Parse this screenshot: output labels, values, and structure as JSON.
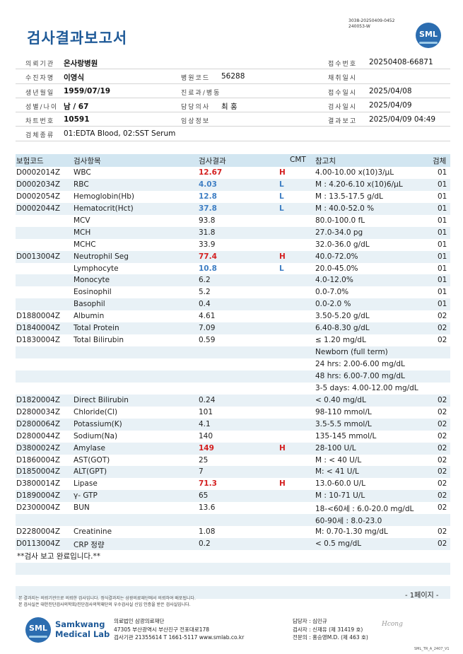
{
  "header": {
    "doc_code_line1": "3038-20250409-0452",
    "doc_code_line2": "240053-W",
    "title": "검사결과보고서",
    "logo_text": "SML"
  },
  "info": {
    "rows": [
      {
        "l1": "의뢰기관",
        "v1": "온사랑병원",
        "l2": "",
        "v2": "",
        "l3": "접수번호",
        "v3": "20250408-66871"
      },
      {
        "l1": "수진자명",
        "v1": "이영식",
        "l2": "병원코드",
        "v2": "56288",
        "l3": "채취일시",
        "v3": ""
      },
      {
        "l1": "생년월일",
        "v1": "1959/07/19",
        "l2": "진료과/병동",
        "v2": "",
        "l3": "접수일시",
        "v3": "2025/04/08"
      },
      {
        "l1": "성별/나이",
        "v1": "남 / 67",
        "l2": "담당의사",
        "v2": "최 홍",
        "l3": "검사일시",
        "v3": "2025/04/09"
      },
      {
        "l1": "차트번호",
        "v1": "10591",
        "l2": "임상정보",
        "v2": "",
        "l3": "결과보고",
        "v3": "2025/04/09 04:49"
      },
      {
        "l1": "검체종류",
        "v1": "01:EDTA Blood, 02:SST Serum",
        "l2": "",
        "v2": "",
        "l3": "",
        "v3": ""
      }
    ]
  },
  "results": {
    "headers": {
      "code": "보험코드",
      "item": "검사항목",
      "result": "검사결과",
      "cmt": "CMT",
      "ref": "참고치",
      "specimen": "검체"
    },
    "rows": [
      {
        "code": "D0002014Z",
        "item": "WBC",
        "result": "12.67",
        "flag": "H",
        "ref": "4.00-10.00 x(10)3/μL",
        "spec": "01"
      },
      {
        "code": "D0002034Z",
        "item": "RBC",
        "result": "4.03",
        "flag": "L",
        "ref": "M : 4.20-6.10 x(10)6/μL",
        "spec": "01"
      },
      {
        "code": "D0002054Z",
        "item": "Hemoglobin(Hb)",
        "result": "12.8",
        "flag": "L",
        "ref": "M : 13.5-17.5 g/dL",
        "spec": "01"
      },
      {
        "code": "D0002044Z",
        "item": "Hematocrit(Hct)",
        "result": "37.8",
        "flag": "L",
        "ref": "M : 40.0-52.0 %",
        "spec": "01"
      },
      {
        "code": "",
        "item": "MCV",
        "result": "93.8",
        "flag": "",
        "ref": "80.0-100.0 fL",
        "spec": "01"
      },
      {
        "code": "",
        "item": "MCH",
        "result": "31.8",
        "flag": "",
        "ref": "27.0-34.0 pg",
        "spec": "01"
      },
      {
        "code": "",
        "item": "MCHC",
        "result": "33.9",
        "flag": "",
        "ref": "32.0-36.0 g/dL",
        "spec": "01"
      },
      {
        "code": "D0013004Z",
        "item": "Neutrophil Seg",
        "result": "77.4",
        "flag": "H",
        "ref": "40.0-72.0%",
        "spec": "01"
      },
      {
        "code": "",
        "item": "Lymphocyte",
        "result": "10.8",
        "flag": "L",
        "ref": "20.0-45.0%",
        "spec": "01"
      },
      {
        "code": "",
        "item": "Monocyte",
        "result": "6.2",
        "flag": "",
        "ref": "4.0-12.0%",
        "spec": "01"
      },
      {
        "code": "",
        "item": "Eosinophil",
        "result": "5.2",
        "flag": "",
        "ref": "0.0-7.0%",
        "spec": "01"
      },
      {
        "code": "",
        "item": "Basophil",
        "result": "0.4",
        "flag": "",
        "ref": "0.0-2.0 %",
        "spec": "01"
      },
      {
        "code": "D1880004Z",
        "item": "Albumin",
        "result": "4.61",
        "flag": "",
        "ref": "3.50-5.20 g/dL",
        "spec": "02"
      },
      {
        "code": "D1840004Z",
        "item": "Total Protein",
        "result": "7.09",
        "flag": "",
        "ref": "6.40-8.30 g/dL",
        "spec": "02"
      },
      {
        "code": "D1830004Z",
        "item": "Total Bilirubin",
        "result": "0.59",
        "flag": "",
        "ref": "≤ 1.20 mg/dL",
        "spec": "02"
      },
      {
        "code": "",
        "item": "",
        "result": "",
        "flag": "",
        "ref": "Newborn (full term)",
        "spec": ""
      },
      {
        "code": "",
        "item": "",
        "result": "",
        "flag": "",
        "ref": "24 hrs: 2.00-6.00 mg/dL",
        "spec": ""
      },
      {
        "code": "",
        "item": "",
        "result": "",
        "flag": "",
        "ref": "48 hrs: 6.00-7.00 mg/dL",
        "spec": ""
      },
      {
        "code": "",
        "item": "",
        "result": "",
        "flag": "",
        "ref": "3-5 days: 4.00-12.00 mg/dL",
        "spec": ""
      },
      {
        "code": "D1820004Z",
        "item": "Direct Bilirubin",
        "result": "0.24",
        "flag": "",
        "ref": "< 0.40 mg/dL",
        "spec": "02"
      },
      {
        "code": "D2800034Z",
        "item": "Chloride(Cl)",
        "result": "101",
        "flag": "",
        "ref": "98-110 mmol/L",
        "spec": "02"
      },
      {
        "code": "D2800064Z",
        "item": "Potassium(K)",
        "result": "4.1",
        "flag": "",
        "ref": "3.5-5.5 mmol/L",
        "spec": "02"
      },
      {
        "code": "D2800044Z",
        "item": "Sodium(Na)",
        "result": "140",
        "flag": "",
        "ref": "135-145 mmol/L",
        "spec": "02"
      },
      {
        "code": "D3800024Z",
        "item": "Amylase",
        "result": "149",
        "flag": "H",
        "ref": "28-100 U/L",
        "spec": "02"
      },
      {
        "code": "D1860004Z",
        "item": "AST(GOT)",
        "result": "25",
        "flag": "",
        "ref": "M : < 40 U/L",
        "spec": "02"
      },
      {
        "code": "D1850004Z",
        "item": "ALT(GPT)",
        "result": "7",
        "flag": "",
        "ref": "M: < 41 U/L",
        "spec": "02"
      },
      {
        "code": "D3800014Z",
        "item": "Lipase",
        "result": "71.3",
        "flag": "H",
        "ref": "13.0-60.0 U/L",
        "spec": "02"
      },
      {
        "code": "D1890004Z",
        "item": "γ- GTP",
        "result": "65",
        "flag": "",
        "ref": "M : 10-71 U/L",
        "spec": "02"
      },
      {
        "code": "D2300004Z",
        "item": "BUN",
        "result": "13.6",
        "flag": "",
        "ref": "18-<60세 : 6.0-20.0 mg/dL",
        "spec": "02"
      },
      {
        "code": "",
        "item": "",
        "result": "",
        "flag": "",
        "ref": "60-90세 : 8.0-23.0",
        "spec": ""
      },
      {
        "code": "D2280004Z",
        "item": "Creatinine",
        "result": "1.08",
        "flag": "",
        "ref": "M: 0.70-1.30 mg/dL",
        "spec": "02"
      },
      {
        "code": "D0113004Z",
        "item": "CRP 정량",
        "result": "0.2",
        "flag": "",
        "ref": "< 0.5 mg/dL",
        "spec": "02"
      }
    ],
    "end_note": "**검사 보고 완료입니다.**"
  },
  "footer": {
    "notice1": "본 결과지는 의뢰기관으로 의뢰한 검사입니다. 정식결과지는 삼광의료재단에서 의뢰하여 배포됩니다.",
    "notice2": "본 검사실은 대한진단검사의학회/진단검사의학재단의 우수검사실 신임 인증을 받은 검사실입니다.",
    "page_label": "- 1페이지 -",
    "brand_line1": "Samkwang",
    "brand_line2": "Medical Lab",
    "logo_text": "SML",
    "addr_line1": "의료법인 삼광의료재단",
    "addr_line2": "47305 부산광역시 부산진구 전포대로178",
    "addr_line3": "검사기관 21355614 T 1661-5117 www.smlab.co.kr",
    "staff_line1": "담당자 : 심민규",
    "staff_line2": "검사자 : 신재유 (제 31419 호)",
    "staff_line3": "전문의 : 홍승영M.D. (제 463 호)",
    "signature": "Hcong",
    "form_code": "SML_TR_A_2407_V1"
  },
  "colors": {
    "title_blue": "#1f5a98",
    "header_band": "#d2e6f1",
    "row_shade": "#e8f1f6",
    "high_flag": "#d42020",
    "low_flag": "#3f7fc4",
    "logo_blue": "#2c6db0"
  }
}
